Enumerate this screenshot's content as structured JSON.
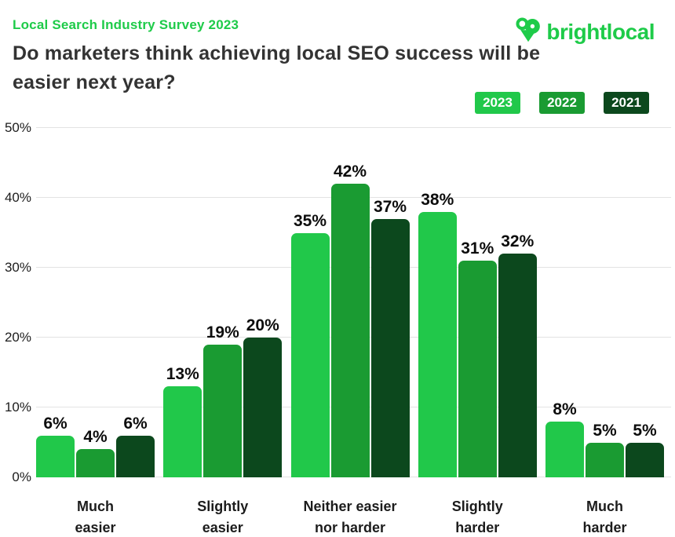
{
  "header": {
    "eyebrow": "Local Search Industry Survey 2023",
    "title": "Do marketers think achieving local SEO success will be\neasier next year?",
    "logo_text": "brightlocal"
  },
  "colors": {
    "accent_green": "#1ECB49",
    "series_2023": "#21C84A",
    "series_2022": "#1A9B32",
    "series_2021": "#0C481D",
    "title_text": "#333333",
    "gridline": "#e3e3e3"
  },
  "chart_data": {
    "type": "bar",
    "title": "Do marketers think achieving local SEO success will be easier next year?",
    "subtitle": "Local Search Industry Survey 2023",
    "categories": [
      "Much\neasier",
      "Slightly\neasier",
      "Neither easier\nnor harder",
      "Slightly\nharder",
      "Much\nharder"
    ],
    "series": [
      {
        "name": "2023",
        "color": "#21C84A",
        "values": [
          6,
          13,
          35,
          38,
          8
        ]
      },
      {
        "name": "2022",
        "color": "#1A9B32",
        "values": [
          4,
          19,
          42,
          31,
          5
        ]
      },
      {
        "name": "2021",
        "color": "#0C481D",
        "values": [
          6,
          20,
          37,
          32,
          5
        ]
      }
    ],
    "value_suffix": "%",
    "yticks": [
      0,
      10,
      20,
      30,
      40,
      50
    ],
    "ytick_labels": [
      "0%",
      "10%",
      "20%",
      "30%",
      "40%",
      "50%"
    ],
    "ylim": [
      0,
      50
    ],
    "xlabel": "",
    "ylabel": "",
    "grid": true,
    "legend_position": "top-right"
  }
}
